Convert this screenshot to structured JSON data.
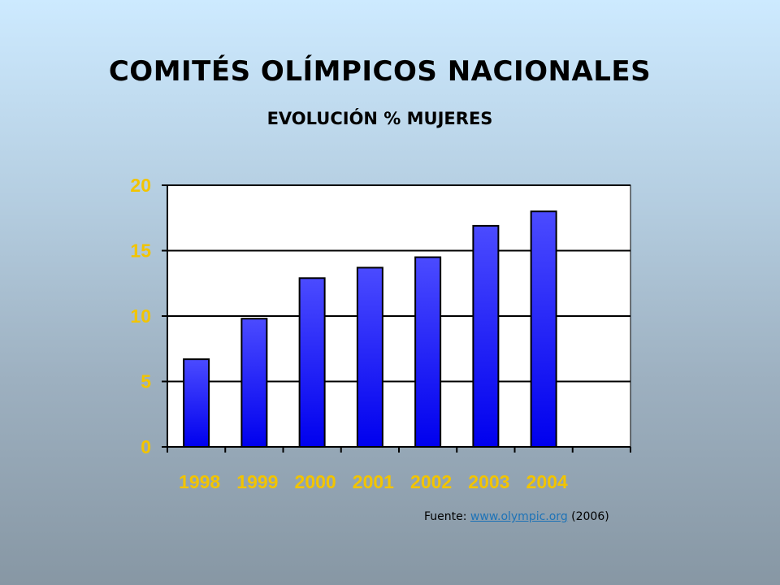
{
  "title": "COMITÉS OLÍMPICOS NACIONALES",
  "subtitle": "EVOLUCIÓN % MUJERES",
  "source": {
    "prefix": "Fuente: ",
    "link_text": "www.olympic.org",
    "suffix": " (2006)"
  },
  "colors": {
    "bar_top": "#4b4bff",
    "bar_bottom": "#0000ee",
    "tick_label": "#f2c400",
    "plot_background": "#ffffff",
    "gridline": "#000000"
  },
  "chart_data": {
    "type": "bar",
    "categories": [
      "1998",
      "1999",
      "2000",
      "2001",
      "2002",
      "2003",
      "2004"
    ],
    "values": [
      6.7,
      9.8,
      12.9,
      13.7,
      14.5,
      16.9,
      18.0
    ],
    "title": "COMITÉS OLÍMPICOS NACIONALES",
    "subtitle": "EVOLUCIÓN % MUJERES",
    "xlabel": "",
    "ylabel": "",
    "ylim": [
      0,
      20
    ],
    "yticks": [
      "0",
      "5",
      "10",
      "15",
      "20"
    ],
    "grid": true,
    "legend": "none"
  }
}
